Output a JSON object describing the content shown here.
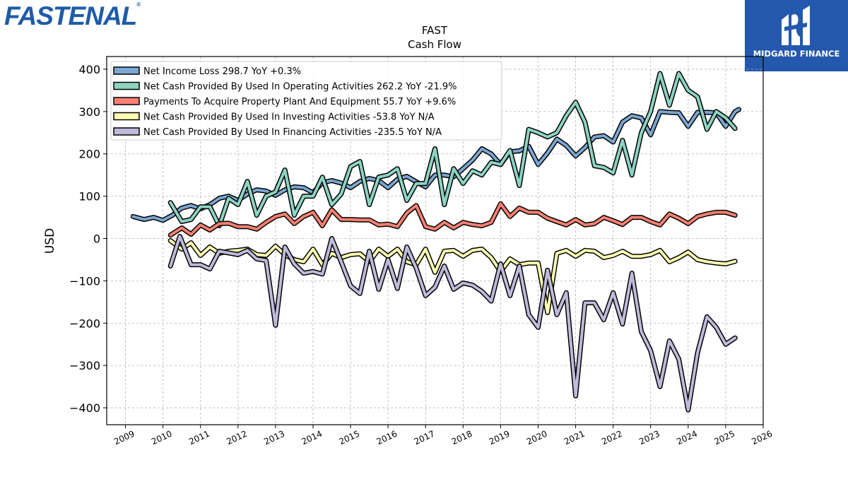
{
  "header": {
    "logo_text": "Fastenal",
    "brand_name": "MIDGARD FINANCE"
  },
  "chart_data": {
    "type": "line",
    "title": "FAST",
    "subtitle": "Cash Flow",
    "xlabel": "",
    "ylabel": "USD",
    "xlim": [
      2008.5,
      2026.0
    ],
    "ylim": [
      -440,
      430
    ],
    "x_ticks": [
      "2009",
      "2010",
      "2011",
      "2012",
      "2013",
      "2014",
      "2015",
      "2016",
      "2017",
      "2018",
      "2019",
      "2020",
      "2021",
      "2022",
      "2023",
      "2024",
      "2025",
      "2026"
    ],
    "y_ticks": [
      400,
      300,
      200,
      100,
      0,
      -100,
      -200,
      -300,
      -400
    ],
    "y_tick_labels": [
      "400",
      "300",
      "200",
      "100",
      "0",
      "−100",
      "−200",
      "−300",
      "−400"
    ],
    "grid": true,
    "legend_position": "top-left",
    "series": [
      {
        "name": "Net Income Loss",
        "legend": "Net Income Loss  298.7 YoY +0.3%",
        "color": "#7ba7d0",
        "x": [
          2009.2,
          2009.5,
          2009.75,
          2010.0,
          2010.25,
          2010.5,
          2010.75,
          2011.0,
          2011.25,
          2011.5,
          2011.75,
          2012.0,
          2012.25,
          2012.5,
          2012.75,
          2013.0,
          2013.25,
          2013.5,
          2013.75,
          2014.0,
          2014.25,
          2014.5,
          2014.75,
          2015.0,
          2015.25,
          2015.5,
          2015.75,
          2016.0,
          2016.25,
          2016.5,
          2016.75,
          2017.0,
          2017.25,
          2017.5,
          2017.75,
          2018.0,
          2018.25,
          2018.5,
          2018.75,
          2019.0,
          2019.25,
          2019.5,
          2019.75,
          2020.0,
          2020.25,
          2020.5,
          2020.75,
          2021.0,
          2021.25,
          2021.5,
          2021.75,
          2022.0,
          2022.25,
          2022.5,
          2022.75,
          2023.0,
          2023.25,
          2023.5,
          2023.75,
          2024.0,
          2024.25,
          2024.5,
          2024.75,
          2025.0,
          2025.25,
          2025.35
        ],
        "y": [
          52,
          45,
          50,
          43,
          55,
          72,
          78,
          70,
          80,
          95,
          100,
          90,
          105,
          115,
          112,
          102,
          115,
          122,
          120,
          108,
          132,
          137,
          131,
          120,
          135,
          142,
          137,
          120,
          140,
          147,
          134,
          122,
          150,
          150,
          146,
          165,
          185,
          212,
          200,
          175,
          205,
          207,
          218,
          175,
          202,
          235,
          220,
          195,
          215,
          240,
          243,
          228,
          275,
          290,
          285,
          245,
          300,
          298,
          297,
          265,
          298,
          298,
          297,
          265,
          300,
          305
        ]
      },
      {
        "name": "Net Cash Provided By Used In Operating Activities",
        "legend": "Net Cash Provided By Used In Operating Activities  262.2 YoY -21.9%",
        "color": "#8dd3c2",
        "x": [
          2010.2,
          2010.5,
          2010.75,
          2011.0,
          2011.25,
          2011.5,
          2011.75,
          2012.0,
          2012.25,
          2012.5,
          2012.75,
          2013.0,
          2013.25,
          2013.5,
          2013.75,
          2014.0,
          2014.25,
          2014.5,
          2014.75,
          2015.0,
          2015.25,
          2015.5,
          2015.75,
          2016.0,
          2016.25,
          2016.5,
          2016.75,
          2017.0,
          2017.25,
          2017.5,
          2017.75,
          2018.0,
          2018.25,
          2018.5,
          2018.75,
          2019.0,
          2019.25,
          2019.5,
          2019.75,
          2020.0,
          2020.25,
          2020.5,
          2020.75,
          2021.0,
          2021.25,
          2021.5,
          2021.75,
          2022.0,
          2022.25,
          2022.5,
          2022.75,
          2023.0,
          2023.25,
          2023.5,
          2023.75,
          2024.0,
          2024.25,
          2024.5,
          2024.75,
          2025.0,
          2025.25
        ],
        "y": [
          85,
          40,
          45,
          75,
          75,
          30,
          95,
          80,
          135,
          55,
          100,
          110,
          162,
          55,
          100,
          100,
          145,
          80,
          105,
          170,
          182,
          80,
          145,
          150,
          165,
          90,
          130,
          130,
          212,
          80,
          165,
          130,
          160,
          150,
          180,
          175,
          208,
          125,
          258,
          250,
          240,
          250,
          290,
          322,
          275,
          172,
          168,
          155,
          232,
          150,
          250,
          300,
          390,
          315,
          390,
          350,
          335,
          258,
          300,
          285,
          260
        ]
      },
      {
        "name": "Payments To Acquire Property Plant And Equipment",
        "legend": "Payments To Acquire Property Plant And Equipment  55.7 YoY +9.6%",
        "color": "#f98072",
        "x": [
          2010.2,
          2010.5,
          2010.75,
          2011.0,
          2011.25,
          2011.5,
          2011.75,
          2012.0,
          2012.25,
          2012.5,
          2012.75,
          2013.0,
          2013.25,
          2013.5,
          2013.75,
          2014.0,
          2014.25,
          2014.5,
          2014.75,
          2015.0,
          2015.25,
          2015.5,
          2015.75,
          2016.0,
          2016.25,
          2016.5,
          2016.75,
          2017.0,
          2017.25,
          2017.5,
          2017.75,
          2018.0,
          2018.25,
          2018.5,
          2018.75,
          2019.0,
          2019.25,
          2019.5,
          2019.75,
          2020.0,
          2020.25,
          2020.5,
          2020.75,
          2021.0,
          2021.25,
          2021.5,
          2021.75,
          2022.0,
          2022.25,
          2022.5,
          2022.75,
          2023.0,
          2023.25,
          2023.5,
          2023.75,
          2024.0,
          2024.25,
          2024.5,
          2024.75,
          2025.0,
          2025.25
        ],
        "y": [
          8,
          25,
          10,
          32,
          20,
          35,
          36,
          28,
          28,
          22,
          38,
          52,
          58,
          35,
          52,
          62,
          30,
          68,
          45,
          45,
          44,
          44,
          32,
          34,
          28,
          60,
          78,
          28,
          22,
          38,
          25,
          38,
          33,
          30,
          38,
          82,
          52,
          72,
          62,
          62,
          48,
          40,
          32,
          45,
          32,
          35,
          50,
          42,
          33,
          50,
          50,
          40,
          32,
          58,
          48,
          35,
          52,
          58,
          62,
          62,
          55
        ]
      },
      {
        "name": "Net Cash Provided By Used In Investing Activities",
        "legend": "Net Cash Provided By Used In Investing Activities  -53.8 YoY N/A",
        "color": "#ffffb3",
        "x": [
          2010.2,
          2010.5,
          2010.75,
          2011.0,
          2011.25,
          2011.5,
          2011.75,
          2012.0,
          2012.25,
          2012.5,
          2012.75,
          2013.0,
          2013.25,
          2013.5,
          2013.75,
          2014.0,
          2014.25,
          2014.5,
          2014.75,
          2015.0,
          2015.25,
          2015.5,
          2015.75,
          2016.0,
          2016.25,
          2016.5,
          2016.75,
          2017.0,
          2017.25,
          2017.5,
          2017.75,
          2018.0,
          2018.25,
          2018.5,
          2018.75,
          2019.0,
          2019.25,
          2019.5,
          2019.75,
          2020.0,
          2020.25,
          2020.5,
          2020.75,
          2021.0,
          2021.25,
          2021.5,
          2021.75,
          2022.0,
          2022.25,
          2022.5,
          2022.75,
          2023.0,
          2023.25,
          2023.5,
          2023.75,
          2024.0,
          2024.25,
          2024.5,
          2024.75,
          2025.0,
          2025.25
        ],
        "y": [
          -5,
          -25,
          -10,
          -40,
          -20,
          -35,
          -30,
          -28,
          -25,
          -38,
          -40,
          -18,
          -38,
          -50,
          -55,
          -25,
          -62,
          -35,
          -45,
          -38,
          -36,
          -55,
          -25,
          -42,
          -25,
          -55,
          -62,
          -25,
          -80,
          -30,
          -28,
          -42,
          -28,
          -25,
          -45,
          -78,
          -48,
          -62,
          -58,
          -58,
          -175,
          -35,
          -28,
          -42,
          -28,
          -30,
          -45,
          -40,
          -30,
          -42,
          -42,
          -38,
          -28,
          -55,
          -45,
          -32,
          -50,
          -55,
          -58,
          -60,
          -54
        ]
      },
      {
        "name": "Net Cash Provided By Used In Financing Activities",
        "legend": "Net Cash Provided By Used In Financing Activities  -235.5 YoY N/A",
        "color": "#bebada",
        "x": [
          2010.2,
          2010.45,
          2010.75,
          2011.0,
          2011.25,
          2011.5,
          2011.75,
          2012.0,
          2012.25,
          2012.5,
          2012.75,
          2013.0,
          2013.25,
          2013.5,
          2013.75,
          2014.0,
          2014.25,
          2014.5,
          2014.75,
          2015.0,
          2015.25,
          2015.5,
          2015.75,
          2016.0,
          2016.25,
          2016.5,
          2016.75,
          2017.0,
          2017.25,
          2017.5,
          2017.75,
          2018.0,
          2018.25,
          2018.5,
          2018.75,
          2019.0,
          2019.25,
          2019.5,
          2019.75,
          2020.0,
          2020.25,
          2020.5,
          2020.75,
          2021.0,
          2021.25,
          2021.5,
          2021.75,
          2022.0,
          2022.25,
          2022.5,
          2022.75,
          2023.0,
          2023.25,
          2023.5,
          2023.75,
          2024.0,
          2024.25,
          2024.5,
          2024.75,
          2025.0,
          2025.25
        ],
        "y": [
          -65,
          5,
          -62,
          -62,
          -72,
          -30,
          -34,
          -38,
          -28,
          -48,
          -52,
          -205,
          -20,
          -60,
          -82,
          -78,
          -84,
          0,
          -55,
          -112,
          -130,
          -30,
          -120,
          -50,
          -118,
          -20,
          -70,
          -135,
          -115,
          -65,
          -120,
          -105,
          -110,
          -125,
          -148,
          -60,
          -135,
          -65,
          -180,
          -210,
          -75,
          -180,
          -128,
          -372,
          -152,
          -152,
          -192,
          -128,
          -202,
          -82,
          -220,
          -265,
          -350,
          -242,
          -285,
          -405,
          -270,
          -185,
          -210,
          -250,
          -235
        ]
      }
    ]
  }
}
